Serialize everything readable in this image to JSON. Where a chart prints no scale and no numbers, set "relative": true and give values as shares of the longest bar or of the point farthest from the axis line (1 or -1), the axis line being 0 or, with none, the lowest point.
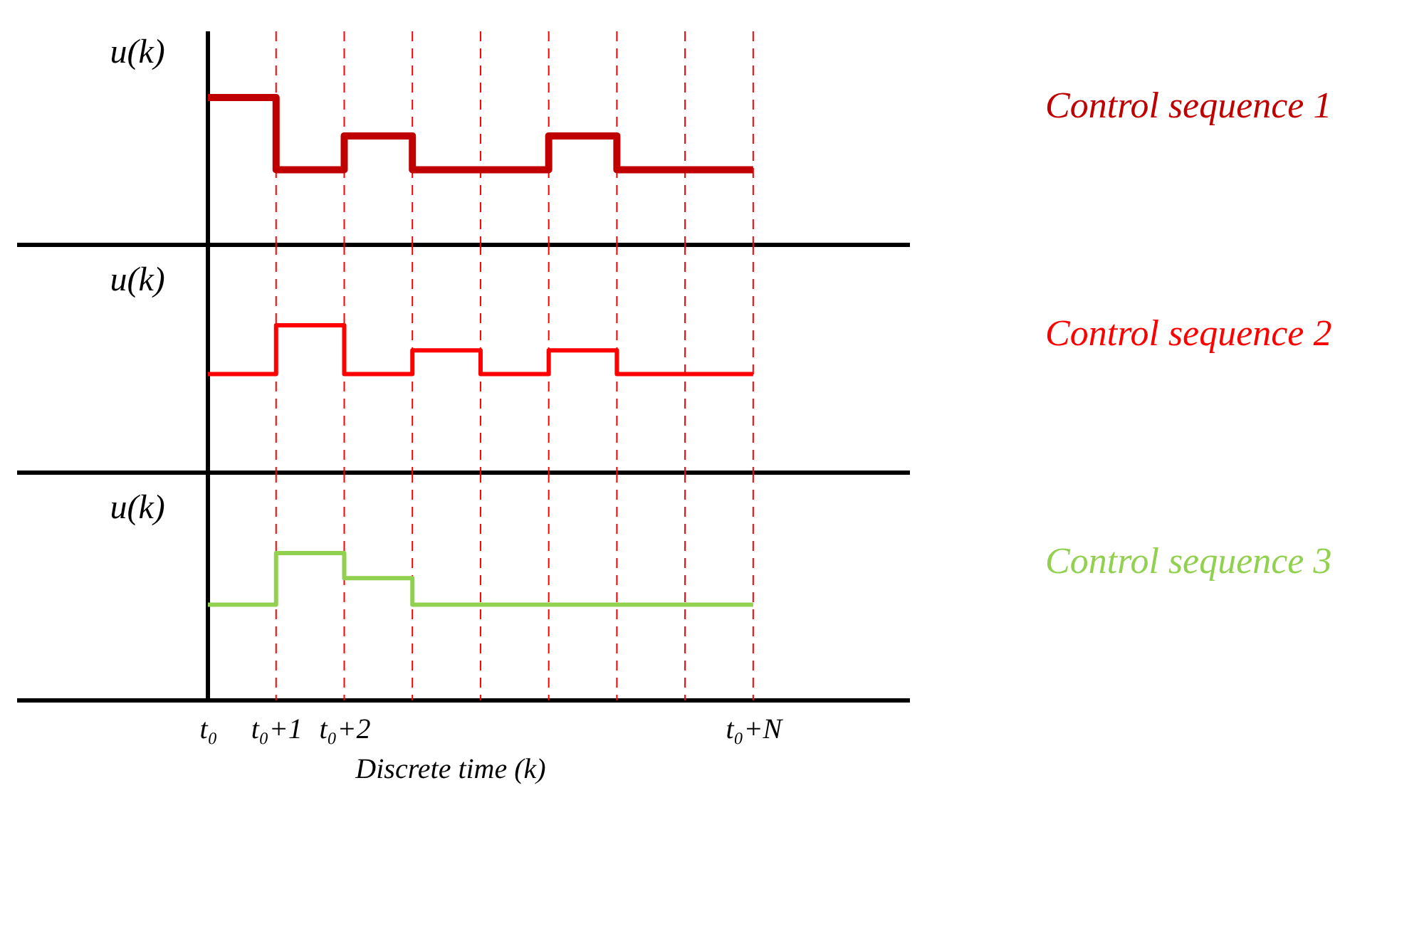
{
  "chart_data": [
    {
      "type": "step",
      "relative": true,
      "ylabel": "u(k)",
      "categories": [
        null,
        null,
        null,
        null,
        null,
        null,
        null,
        null,
        null
      ],
      "grid": "x",
      "series": [
        {
          "name": "Control sequence 1",
          "color": "#c00000",
          "values": [
            1,
            0.51,
            0.74,
            0.51,
            0.51,
            0.74,
            0.51,
            0.51,
            0.51
          ]
        }
      ]
    },
    {
      "type": "step",
      "relative": true,
      "ylabel": "u(k)",
      "categories": [
        null,
        null,
        null,
        null,
        null,
        null,
        null,
        null,
        null
      ],
      "grid": "x",
      "series": [
        {
          "name": "Control sequence 2",
          "color": "#ff0000",
          "values": [
            0.67,
            1,
            0.67,
            0.83,
            0.67,
            0.83,
            0.67,
            0.67,
            0.67
          ]
        }
      ]
    },
    {
      "type": "step",
      "relative": true,
      "ylabel": "u(k)",
      "xlabel": "Discrete time (k)",
      "categories": [
        "t₀",
        "t₀+1",
        "t₀+2",
        null,
        null,
        null,
        null,
        null,
        "t₀+N"
      ],
      "grid": "x",
      "series": [
        {
          "name": "Control sequence 3",
          "color": "#92d050",
          "values": [
            0.65,
            1,
            0.83,
            0.65,
            0.65,
            0.65,
            0.65,
            0.65,
            0.65
          ]
        }
      ]
    }
  ]
}
